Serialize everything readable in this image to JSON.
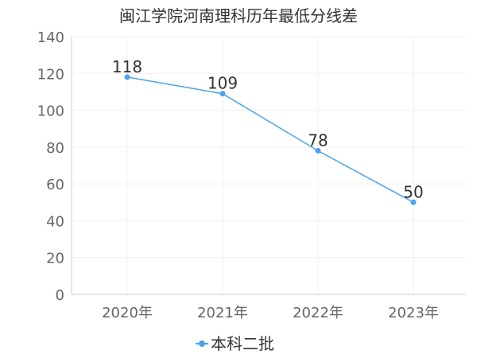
{
  "chart_data": {
    "type": "line",
    "title": "闽江学院河南理科历年最低分线差",
    "categories": [
      "2020年",
      "2021年",
      "2022年",
      "2023年"
    ],
    "series": [
      {
        "name": "本科二批",
        "values": [
          118,
          109,
          78,
          50
        ]
      }
    ],
    "ylim": [
      0,
      140
    ],
    "yticks": [
      0,
      20,
      40,
      60,
      80,
      100,
      120,
      140
    ],
    "grid": true,
    "legend": "bottom",
    "colors": {
      "line": "#4aa3f0",
      "axis": "#cccccc",
      "grid": "#f0f0f0"
    }
  }
}
